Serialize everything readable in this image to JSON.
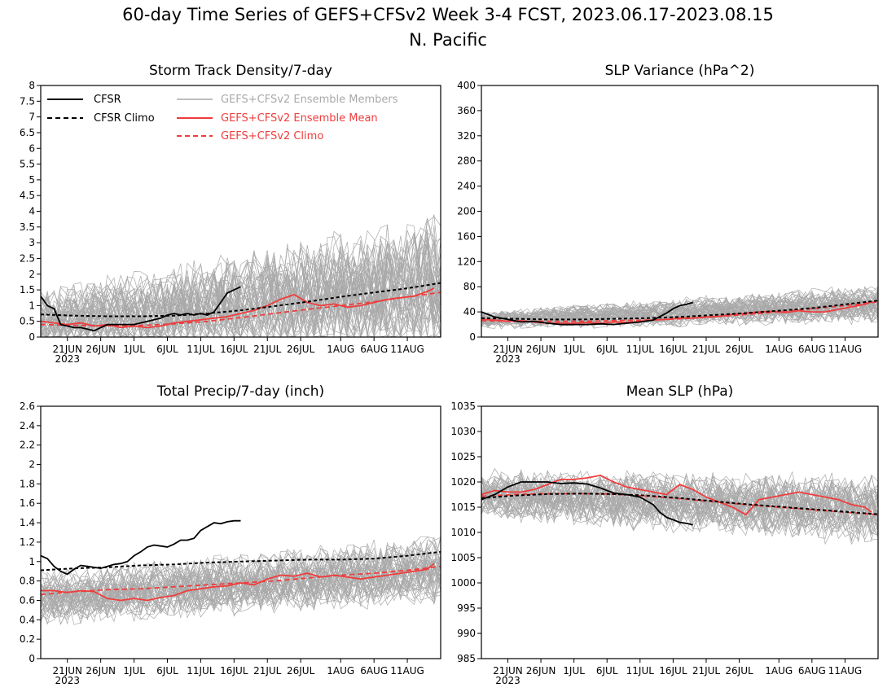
{
  "figure": {
    "title_line1": "60-day Time Series of GEFS+CFSv2 Week 3-4 FCST, 2023.06.17-2023.08.15",
    "title_line2": "N. Pacific"
  },
  "legend": {
    "cfsr": "CFSR",
    "cfsr_climo": "CFSR Climo",
    "members": "GEFS+CFSv2 Ensemble Members",
    "ens_mean": "GEFS+CFSv2 Ensemble Mean",
    "ens_climo": "GEFS+CFSv2 Climo"
  },
  "colors": {
    "cfsr": "#000000",
    "members": "#a9a9a9",
    "ens_mean": "#f03c3c",
    "axes": "#000000"
  },
  "x_axis": {
    "days": 60,
    "start_date": "2023-06-17",
    "ticks": [
      {
        "day": 4,
        "label": "21JUN"
      },
      {
        "day": 9,
        "label": "26JUN"
      },
      {
        "day": 14,
        "label": "1JUL"
      },
      {
        "day": 19,
        "label": "6JUL"
      },
      {
        "day": 24,
        "label": "11JUL"
      },
      {
        "day": 29,
        "label": "16JUL"
      },
      {
        "day": 34,
        "label": "21JUL"
      },
      {
        "day": 39,
        "label": "26JUL"
      },
      {
        "day": 45,
        "label": "1AUG"
      },
      {
        "day": 50,
        "label": "6AUG"
      },
      {
        "day": 55,
        "label": "11AUG"
      }
    ],
    "year_label": "2023"
  },
  "chart_data": [
    {
      "type": "line",
      "title": "Storm Track Density/7-day",
      "ylim": [
        0,
        8
      ],
      "yticks": [
        "0",
        "0.5",
        "1",
        "1.5",
        "2",
        "2.5",
        "3",
        "3.5",
        "4",
        "4.5",
        "5",
        "5.5",
        "6",
        "6.5",
        "7",
        "7.5",
        "8"
      ],
      "ytick_values": [
        0,
        0.5,
        1,
        1.5,
        2,
        2.5,
        3,
        3.5,
        4,
        4.5,
        5,
        5.5,
        6,
        6.5,
        7,
        7.5,
        8
      ],
      "members_envelope": {
        "count": 48,
        "center_start": 0.5,
        "center_end": 1.6,
        "spread_start": 1.5,
        "spread_end": 3.4
      },
      "series": [
        {
          "name": "CFSR",
          "x": [
            0,
            1,
            2,
            3,
            4,
            5,
            6,
            7,
            8,
            9,
            10,
            11,
            12,
            13,
            14,
            15,
            16,
            17,
            18,
            19,
            20,
            21,
            22,
            23,
            24,
            25,
            26,
            27,
            28,
            29,
            30
          ],
          "y": [
            1.3,
            1.0,
            0.9,
            0.4,
            0.35,
            0.3,
            0.3,
            0.25,
            0.2,
            0.3,
            0.4,
            0.4,
            0.4,
            0.4,
            0.4,
            0.45,
            0.5,
            0.55,
            0.6,
            0.7,
            0.75,
            0.7,
            0.75,
            0.7,
            0.75,
            0.7,
            0.8,
            1.1,
            1.4,
            1.5,
            1.6
          ]
        },
        {
          "name": "CFSR Climo",
          "x": [
            0,
            5,
            10,
            15,
            20,
            25,
            30,
            35,
            40,
            45,
            50,
            55,
            60
          ],
          "y": [
            0.72,
            0.68,
            0.66,
            0.66,
            0.68,
            0.75,
            0.85,
            0.98,
            1.12,
            1.28,
            1.42,
            1.55,
            1.72
          ]
        },
        {
          "name": "GEFS+CFSv2 Ensemble Mean",
          "x": [
            0,
            2,
            4,
            6,
            8,
            10,
            12,
            14,
            16,
            18,
            20,
            22,
            24,
            26,
            28,
            30,
            32,
            34,
            36,
            38,
            40,
            42,
            44,
            46,
            48,
            50,
            52,
            54,
            56,
            58,
            59
          ],
          "y": [
            0.5,
            0.45,
            0.4,
            0.45,
            0.35,
            0.4,
            0.3,
            0.35,
            0.3,
            0.35,
            0.45,
            0.5,
            0.55,
            0.6,
            0.65,
            0.75,
            0.85,
            1.0,
            1.2,
            1.35,
            1.1,
            1.0,
            1.05,
            0.95,
            1.0,
            1.1,
            1.2,
            1.25,
            1.3,
            1.45,
            1.55
          ]
        },
        {
          "name": "GEFS+CFSv2 Climo",
          "x": [
            0,
            5,
            10,
            15,
            20,
            25,
            30,
            35,
            40,
            45,
            50,
            55,
            60
          ],
          "y": [
            0.4,
            0.37,
            0.36,
            0.37,
            0.42,
            0.5,
            0.62,
            0.75,
            0.88,
            1.0,
            1.12,
            1.28,
            1.42
          ]
        }
      ]
    },
    {
      "type": "line",
      "title": "SLP Variance (hPa^2)",
      "ylim": [
        0,
        400
      ],
      "yticks": [
        "0",
        "40",
        "80",
        "120",
        "160",
        "200",
        "240",
        "280",
        "320",
        "360",
        "400"
      ],
      "ytick_values": [
        0,
        40,
        80,
        120,
        160,
        200,
        240,
        280,
        320,
        360,
        400
      ],
      "members_envelope": {
        "count": 48,
        "center_start": 27,
        "center_end": 52,
        "spread_start": 20,
        "spread_end": 45
      },
      "series": [
        {
          "name": "CFSR",
          "x": [
            0,
            2,
            4,
            6,
            8,
            10,
            12,
            14,
            16,
            18,
            20,
            22,
            24,
            26,
            28,
            29,
            30,
            31,
            32
          ],
          "y": [
            40,
            32,
            28,
            24,
            25,
            22,
            20,
            20,
            20,
            21,
            20,
            22,
            24,
            27,
            38,
            45,
            50,
            52,
            55
          ]
        },
        {
          "name": "CFSR Climo",
          "x": [
            0,
            5,
            10,
            15,
            20,
            25,
            30,
            35,
            40,
            45,
            50,
            55,
            60
          ],
          "y": [
            30,
            29,
            28,
            28,
            29,
            30,
            32,
            35,
            38,
            42,
            46,
            52,
            58
          ]
        },
        {
          "name": "GEFS+CFSv2 Ensemble Mean",
          "x": [
            0,
            2,
            4,
            6,
            8,
            10,
            12,
            14,
            16,
            18,
            20,
            22,
            24,
            26,
            28,
            30,
            32,
            34,
            36,
            38,
            40,
            42,
            44,
            46,
            48,
            50,
            52,
            54,
            56,
            58,
            59
          ],
          "y": [
            28,
            27,
            25,
            26,
            24,
            22,
            22,
            22,
            23,
            22,
            24,
            23,
            25,
            27,
            28,
            30,
            30,
            32,
            33,
            36,
            38,
            40,
            41,
            39,
            42,
            40,
            40,
            44,
            48,
            52,
            56
          ]
        },
        {
          "name": "GEFS+CFSv2 Climo",
          "x": [
            0,
            5,
            10,
            15,
            20,
            25,
            30,
            35,
            40,
            45,
            50,
            55,
            60
          ],
          "y": [
            26,
            25,
            25,
            25,
            26,
            27,
            29,
            32,
            36,
            40,
            45,
            50,
            56
          ]
        }
      ]
    },
    {
      "type": "line",
      "title": "Total Precip/7-day (inch)",
      "ylim": [
        0,
        2.6
      ],
      "yticks": [
        "0",
        "0.2",
        "0.4",
        "0.6",
        "0.8",
        "1",
        "1.2",
        "1.4",
        "1.6",
        "1.8",
        "2",
        "2.2",
        "2.4",
        "2.6"
      ],
      "ytick_values": [
        0,
        0.2,
        0.4,
        0.6,
        0.8,
        1.0,
        1.2,
        1.4,
        1.6,
        1.8,
        2.0,
        2.2,
        2.4,
        2.6
      ],
      "members_envelope": {
        "count": 48,
        "center_start": 0.62,
        "center_end": 0.92,
        "spread_start": 0.4,
        "spread_end": 0.5
      },
      "series": [
        {
          "name": "CFSR",
          "x": [
            0,
            1,
            2,
            3,
            4,
            5,
            6,
            7,
            8,
            9,
            10,
            11,
            12,
            13,
            14,
            15,
            16,
            17,
            18,
            19,
            20,
            21,
            22,
            23,
            24,
            25,
            26,
            27,
            28,
            29,
            30
          ],
          "y": [
            1.06,
            1.03,
            0.95,
            0.9,
            0.87,
            0.92,
            0.96,
            0.95,
            0.94,
            0.93,
            0.95,
            0.97,
            0.98,
            1.0,
            1.06,
            1.1,
            1.15,
            1.17,
            1.16,
            1.15,
            1.18,
            1.22,
            1.22,
            1.24,
            1.32,
            1.36,
            1.4,
            1.39,
            1.41,
            1.42,
            1.42
          ]
        },
        {
          "name": "CFSR Climo",
          "x": [
            0,
            5,
            10,
            15,
            20,
            25,
            30,
            35,
            40,
            45,
            50,
            55,
            60
          ],
          "y": [
            0.91,
            0.93,
            0.94,
            0.96,
            0.97,
            0.99,
            1.0,
            1.01,
            1.02,
            1.02,
            1.03,
            1.06,
            1.1
          ]
        },
        {
          "name": "GEFS+CFSv2 Ensemble Mean",
          "x": [
            0,
            2,
            4,
            6,
            8,
            10,
            12,
            14,
            16,
            18,
            20,
            22,
            24,
            26,
            28,
            30,
            32,
            34,
            36,
            38,
            40,
            42,
            44,
            46,
            48,
            50,
            52,
            54,
            56,
            58,
            59
          ],
          "y": [
            0.7,
            0.7,
            0.68,
            0.7,
            0.69,
            0.62,
            0.6,
            0.62,
            0.6,
            0.63,
            0.65,
            0.7,
            0.72,
            0.74,
            0.75,
            0.78,
            0.76,
            0.82,
            0.86,
            0.85,
            0.88,
            0.84,
            0.86,
            0.84,
            0.82,
            0.84,
            0.86,
            0.88,
            0.9,
            0.92,
            0.98
          ]
        },
        {
          "name": "GEFS+CFSv2 Climo",
          "x": [
            0,
            5,
            10,
            15,
            20,
            25,
            30,
            35,
            40,
            45,
            50,
            55,
            60
          ],
          "y": [
            0.66,
            0.69,
            0.71,
            0.72,
            0.74,
            0.76,
            0.78,
            0.8,
            0.83,
            0.86,
            0.88,
            0.91,
            0.95
          ]
        }
      ]
    },
    {
      "type": "line",
      "title": "Mean SLP (hPa)",
      "ylim": [
        985,
        1035
      ],
      "yticks": [
        "985",
        "990",
        "995",
        "1000",
        "1005",
        "1010",
        "1015",
        "1020",
        "1025",
        "1030",
        "1035"
      ],
      "ytick_values": [
        985,
        990,
        995,
        1000,
        1005,
        1010,
        1015,
        1020,
        1025,
        1030,
        1035
      ],
      "members_envelope": {
        "count": 48,
        "center_start": 1017.5,
        "center_end": 1014.5,
        "spread_start": 7,
        "spread_end": 10
      },
      "series": [
        {
          "name": "CFSR",
          "x": [
            0,
            2,
            4,
            6,
            8,
            10,
            12,
            14,
            16,
            18,
            20,
            22,
            24,
            26,
            27,
            28,
            29,
            30,
            31,
            32
          ],
          "y": [
            1016.5,
            1017.5,
            1019.0,
            1020.0,
            1020.0,
            1020.0,
            1019.7,
            1019.8,
            1019.6,
            1018.8,
            1017.8,
            1017.5,
            1017.0,
            1015.5,
            1014.0,
            1013.0,
            1012.5,
            1012.0,
            1011.8,
            1011.5
          ]
        },
        {
          "name": "CFSR Climo",
          "x": [
            0,
            5,
            10,
            15,
            20,
            25,
            30,
            35,
            40,
            45,
            50,
            55,
            60
          ],
          "y": [
            1016.8,
            1017.3,
            1017.6,
            1017.7,
            1017.6,
            1017.3,
            1016.8,
            1016.2,
            1015.6,
            1015.1,
            1014.6,
            1014.1,
            1013.6
          ]
        },
        {
          "name": "GEFS+CFSv2 Ensemble Mean",
          "x": [
            0,
            2,
            4,
            6,
            8,
            10,
            12,
            14,
            16,
            18,
            20,
            22,
            24,
            26,
            28,
            30,
            32,
            34,
            36,
            38,
            40,
            42,
            44,
            46,
            48,
            50,
            52,
            54,
            56,
            58,
            59
          ],
          "y": [
            1017.5,
            1018.3,
            1018.0,
            1018.0,
            1018.5,
            1019.5,
            1020.5,
            1020.5,
            1020.8,
            1021.3,
            1020.0,
            1019.0,
            1018.5,
            1018.0,
            1017.5,
            1019.5,
            1018.5,
            1017.0,
            1016.0,
            1015.0,
            1013.5,
            1016.5,
            1017.0,
            1017.5,
            1018.0,
            1017.5,
            1017.0,
            1016.5,
            1015.5,
            1015.0,
            1014.0
          ]
        },
        {
          "name": "GEFS+CFSv2 Climo",
          "x": [
            0,
            5,
            10,
            15,
            20,
            25,
            30,
            35,
            40,
            45,
            50,
            55,
            60
          ],
          "y": [
            1017.2,
            1017.5,
            1017.7,
            1017.7,
            1017.6,
            1017.2,
            1016.7,
            1016.1,
            1015.5,
            1015.0,
            1014.5,
            1014.0,
            1013.5
          ]
        }
      ]
    }
  ]
}
